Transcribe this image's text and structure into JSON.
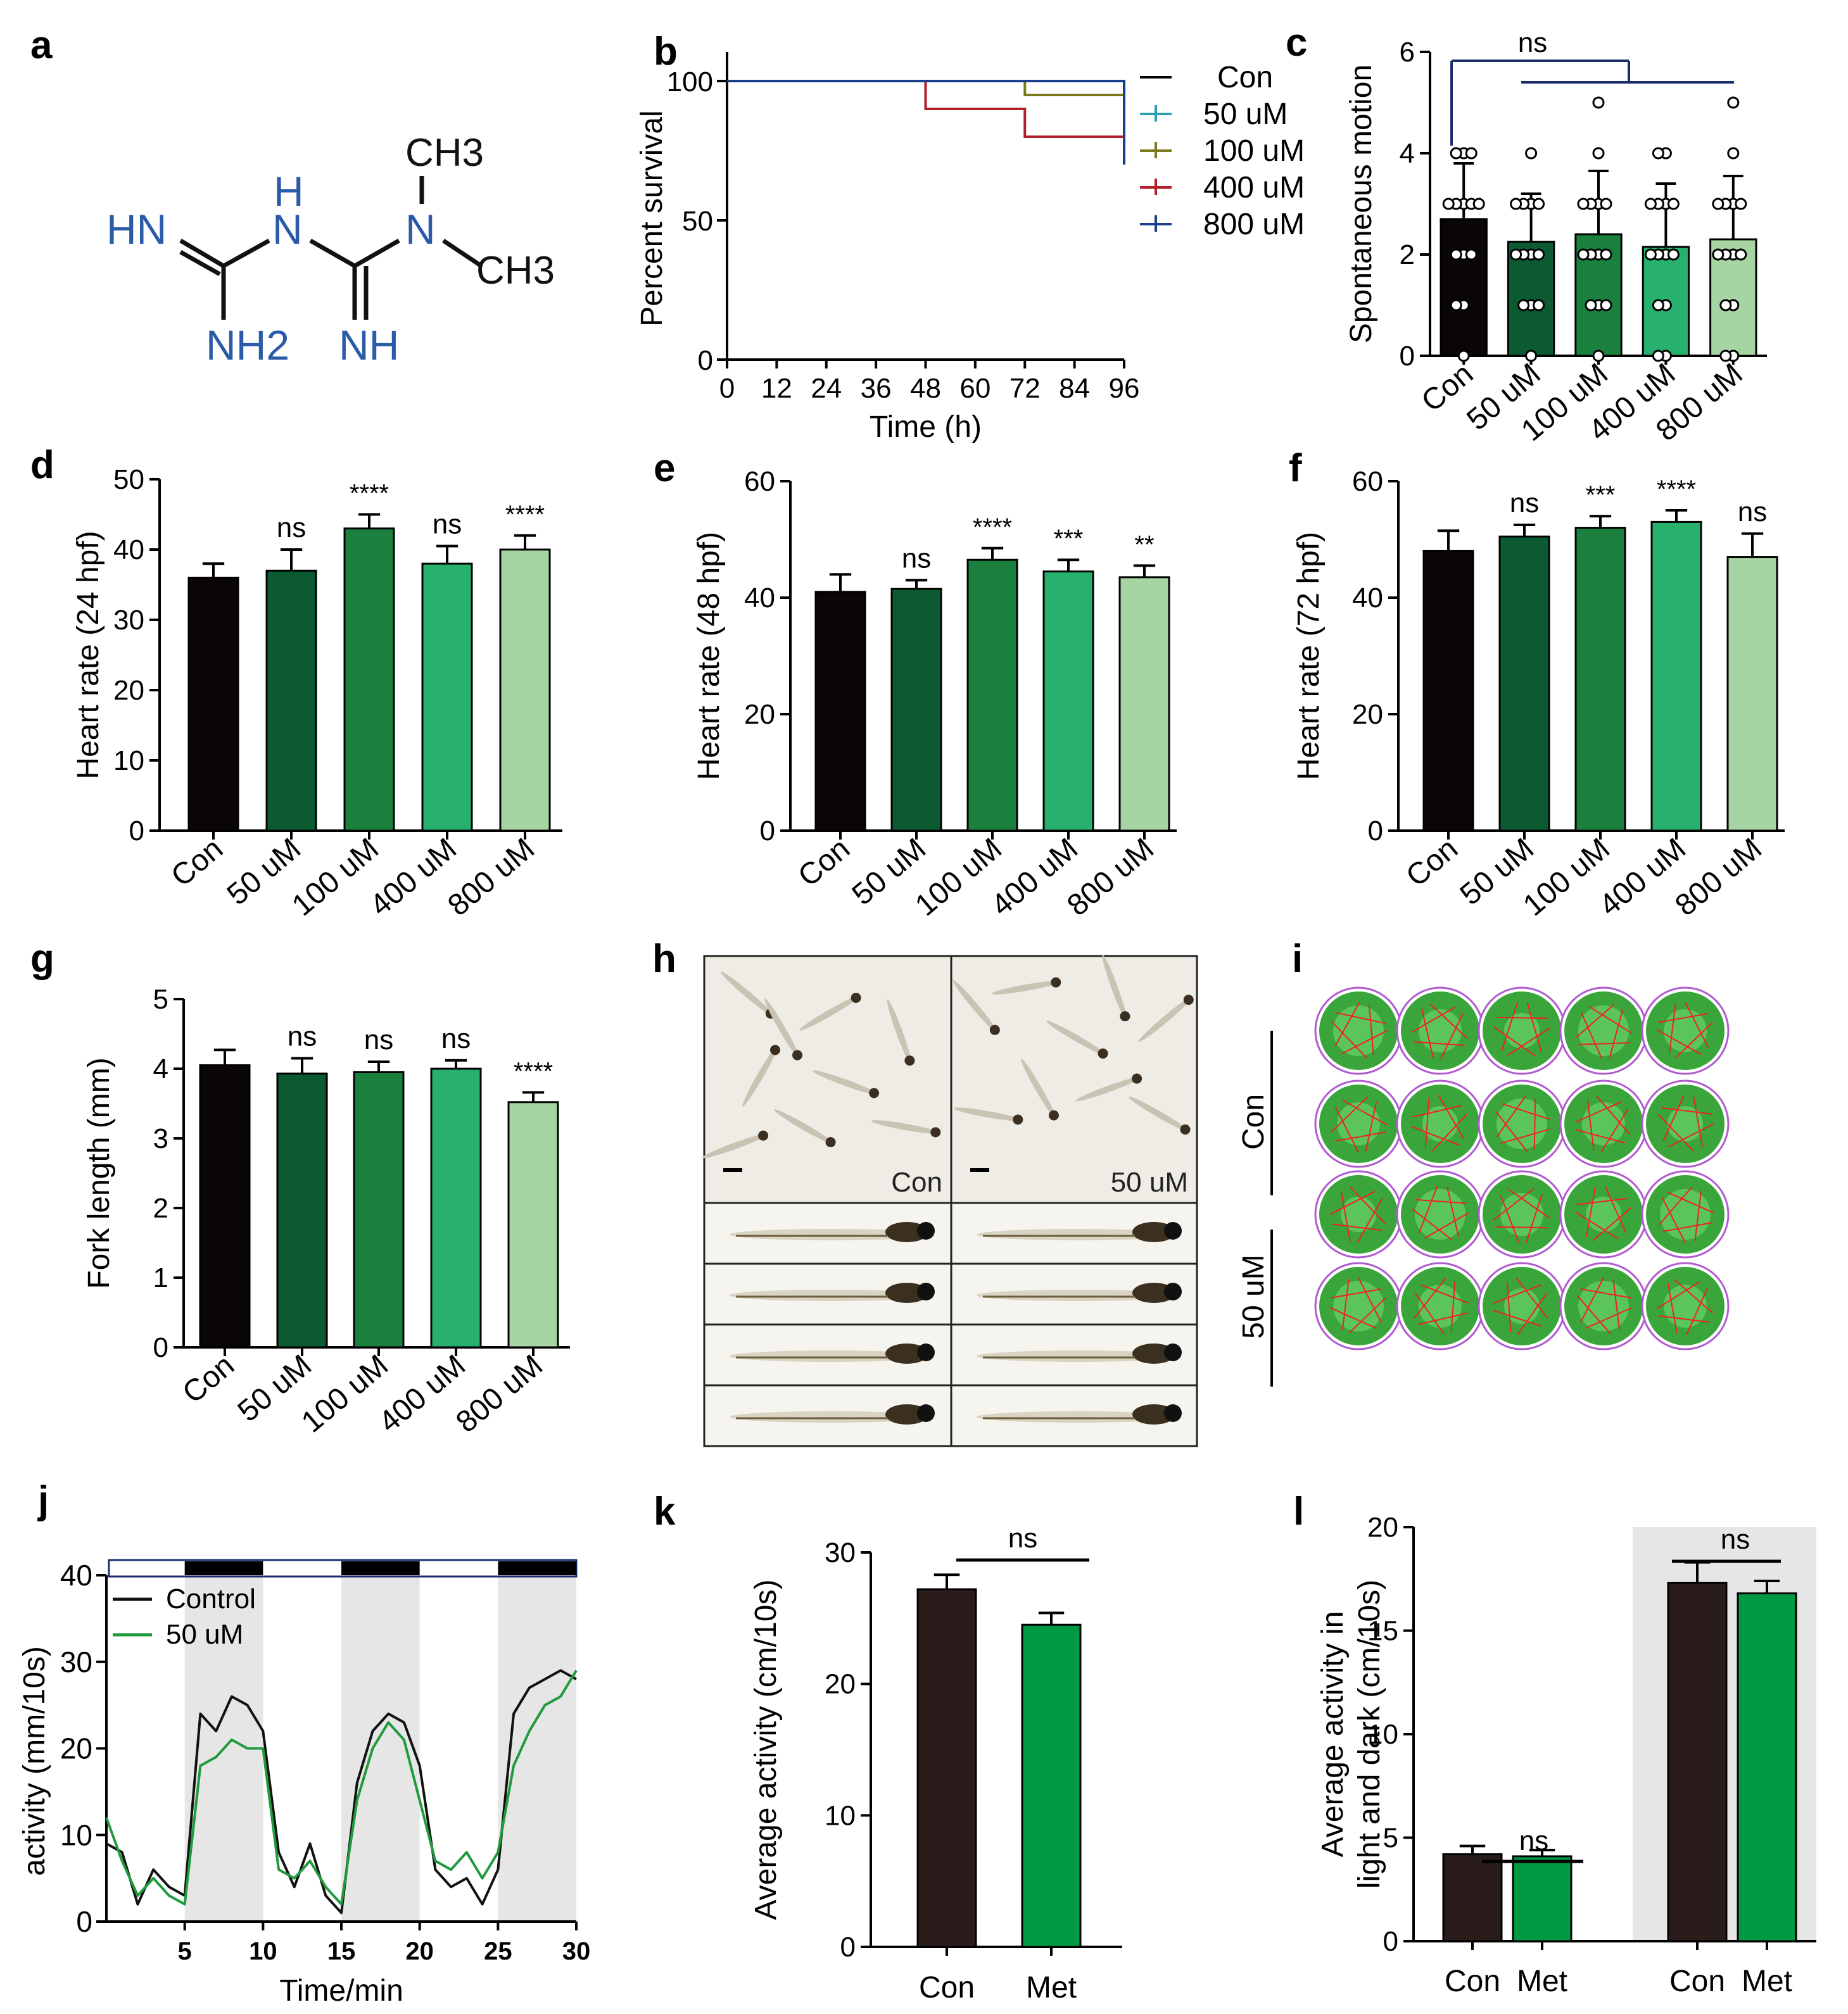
{
  "colors": {
    "con": "#0a0606",
    "g50": "#0b5a31",
    "g100": "#1b7f3e",
    "g400": "#27b06e",
    "g800": "#a6d5a3",
    "met": "#009944",
    "blue": "#2a5aa8",
    "navy": "#1a2b6e",
    "shade": "#e6e6e6"
  },
  "panel_a": {
    "label": "a",
    "atoms": {
      "hn": "HN",
      "nh_top": "H",
      "n1": "N",
      "ch3_top": "CH3",
      "n2": "N",
      "ch3_right": "CH3",
      "nh2": "NH2",
      "nh": "NH"
    }
  },
  "chart_data": [
    {
      "id": "b",
      "label": "b",
      "type": "line",
      "title": "",
      "xlabel": "Time (h)",
      "ylabel": "Percent survival",
      "xlim": [
        0,
        96
      ],
      "ylim": [
        0,
        100
      ],
      "xticks": [
        0,
        12,
        24,
        36,
        48,
        60,
        72,
        84,
        96
      ],
      "yticks": [
        0,
        50,
        100
      ],
      "legend": [
        "Con",
        "50 uM",
        "100 uM",
        "400 uM",
        "800 uM"
      ],
      "series": [
        {
          "name": "Con",
          "x": [
            0,
            96
          ],
          "y": [
            100,
            100
          ]
        },
        {
          "name": "50 uM",
          "x": [
            0,
            96
          ],
          "y": [
            100,
            100
          ]
        },
        {
          "name": "100 uM",
          "x": [
            0,
            72,
            72,
            96
          ],
          "y": [
            100,
            100,
            95,
            95
          ]
        },
        {
          "name": "400 uM",
          "x": [
            0,
            48,
            48,
            72,
            72,
            96
          ],
          "y": [
            100,
            100,
            90,
            90,
            80,
            80
          ]
        },
        {
          "name": "800 uM",
          "x": [
            0,
            96,
            96
          ],
          "y": [
            100,
            100,
            70
          ]
        }
      ]
    },
    {
      "id": "c",
      "label": "c",
      "type": "bar",
      "ylabel": "Spontaneous motion",
      "categories": [
        "Con",
        "50 uM",
        "100 uM",
        "400 uM",
        "800 uM"
      ],
      "values": [
        2.7,
        2.25,
        2.4,
        2.15,
        2.3
      ],
      "errors": [
        1.1,
        0.95,
        1.25,
        1.25,
        1.25
      ],
      "ylim": [
        0,
        6
      ],
      "yticks": [
        0,
        2,
        4,
        6
      ],
      "annotations": [
        "ns"
      ]
    },
    {
      "id": "d",
      "label": "d",
      "type": "bar",
      "ylabel": "Heart rate (24 hpf)",
      "categories": [
        "Con",
        "50 uM",
        "100 uM",
        "400 uM",
        "800 uM"
      ],
      "values": [
        36,
        37,
        43,
        38,
        40
      ],
      "errors": [
        2,
        3,
        2,
        2.5,
        2
      ],
      "ylim": [
        0,
        50
      ],
      "yticks": [
        0,
        10,
        20,
        30,
        40,
        50
      ],
      "annotations": [
        "",
        "ns",
        "****",
        "ns",
        "****"
      ]
    },
    {
      "id": "e",
      "label": "e",
      "type": "bar",
      "ylabel": "Heart rate (48 hpf)",
      "categories": [
        "Con",
        "50 uM",
        "100 uM",
        "400 uM",
        "800 uM"
      ],
      "values": [
        41,
        41.5,
        46.5,
        44.5,
        43.5
      ],
      "errors": [
        3,
        1.5,
        2,
        2,
        2
      ],
      "ylim": [
        0,
        60
      ],
      "yticks": [
        0,
        20,
        40,
        60
      ],
      "annotations": [
        "",
        "ns",
        "****",
        "***",
        "**"
      ]
    },
    {
      "id": "f",
      "label": "f",
      "type": "bar",
      "ylabel": "Heart rate (72 hpf)",
      "categories": [
        "Con",
        "50 uM",
        "100 uM",
        "400 uM",
        "800 uM"
      ],
      "values": [
        48,
        50.5,
        52,
        53,
        47
      ],
      "errors": [
        3.5,
        2,
        2,
        2,
        4
      ],
      "ylim": [
        0,
        60
      ],
      "yticks": [
        0,
        20,
        40,
        60
      ],
      "annotations": [
        "",
        "ns",
        "***",
        "****",
        "ns"
      ]
    },
    {
      "id": "g",
      "label": "g",
      "type": "bar",
      "ylabel": "Fork length (mm)",
      "categories": [
        "Con",
        "50 uM",
        "100 uM",
        "400 uM",
        "800 uM"
      ],
      "values": [
        4.05,
        3.93,
        3.95,
        4.0,
        3.52
      ],
      "errors": [
        0.22,
        0.22,
        0.15,
        0.12,
        0.14
      ],
      "ylim": [
        0,
        5
      ],
      "yticks": [
        0,
        1,
        2,
        3,
        4,
        5
      ],
      "annotations": [
        "",
        "ns",
        "ns",
        "ns",
        "****"
      ]
    },
    {
      "id": "j",
      "label": "j",
      "type": "line",
      "xlabel": "Time/min",
      "ylabel": "activity (mm/10s)",
      "xlim": [
        0,
        30
      ],
      "ylim": [
        0,
        40
      ],
      "xticks": [
        5,
        10,
        15,
        20,
        25,
        30
      ],
      "yticks": [
        0,
        10,
        20,
        30,
        40
      ],
      "dark_periods": [
        [
          5,
          10
        ],
        [
          15,
          20
        ],
        [
          25,
          30
        ]
      ],
      "legend": [
        "Control",
        "50 uM"
      ],
      "series": [
        {
          "name": "Control",
          "x": [
            0,
            1,
            2,
            3,
            4,
            5,
            6,
            7,
            8,
            9,
            10,
            11,
            12,
            13,
            14,
            15,
            16,
            17,
            18,
            19,
            20,
            21,
            22,
            23,
            24,
            25,
            26,
            27,
            28,
            29,
            30
          ],
          "y": [
            9,
            8,
            2,
            6,
            4,
            3,
            24,
            22,
            26,
            25,
            22,
            8,
            4,
            9,
            3,
            1,
            16,
            22,
            24,
            23,
            18,
            6,
            4,
            5,
            2,
            6,
            24,
            27,
            28,
            29,
            28
          ]
        },
        {
          "name": "50 uM",
          "x": [
            0,
            1,
            2,
            3,
            4,
            5,
            6,
            7,
            8,
            9,
            10,
            11,
            12,
            13,
            14,
            15,
            16,
            17,
            18,
            19,
            20,
            21,
            22,
            23,
            24,
            25,
            26,
            27,
            28,
            29,
            30
          ],
          "y": [
            12,
            7,
            3,
            5,
            3,
            2,
            18,
            19,
            21,
            20,
            20,
            6,
            5,
            7,
            4,
            2,
            14,
            20,
            23,
            21,
            14,
            7,
            6,
            8,
            5,
            8,
            18,
            22,
            25,
            26,
            29
          ]
        }
      ]
    },
    {
      "id": "k",
      "label": "k",
      "type": "bar",
      "ylabel": "Average activity (cm/10s)",
      "categories": [
        "Con",
        "Met"
      ],
      "values": [
        27.2,
        24.5
      ],
      "errors": [
        1.1,
        0.9
      ],
      "ylim": [
        0,
        30
      ],
      "yticks": [
        0,
        10,
        20,
        30
      ],
      "annotations": [
        "ns"
      ]
    },
    {
      "id": "l",
      "label": "l",
      "type": "bar",
      "ylabel": "Average activity in light and dark (cm/10s)",
      "ylabel_lines": [
        "Average activity in",
        "light and dark (cm/10s)"
      ],
      "categories": [
        "Con",
        "Met",
        "Con",
        "Met"
      ],
      "values": [
        4.2,
        4.1,
        17.3,
        16.8
      ],
      "errors": [
        0.4,
        0.3,
        1.0,
        0.6
      ],
      "ylim": [
        0,
        20
      ],
      "yticks": [
        0,
        5,
        10,
        15,
        20
      ],
      "annotations": [
        "ns",
        "ns"
      ]
    }
  ],
  "panel_h": {
    "label": "h",
    "top_labels": [
      "Con",
      "50 uM"
    ]
  },
  "panel_i": {
    "label": "i",
    "row_labels": [
      "Con",
      "50 uM"
    ]
  }
}
